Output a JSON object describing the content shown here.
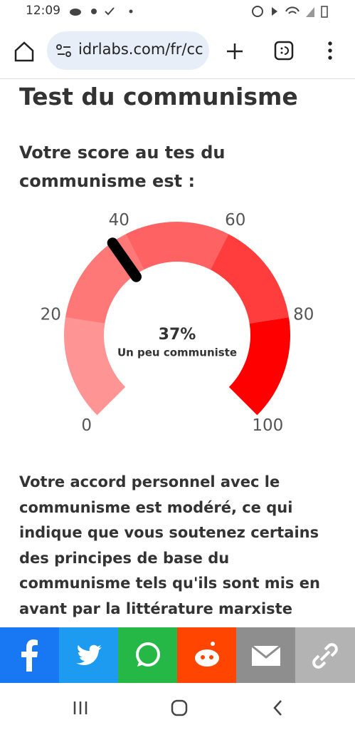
{
  "status_bar": {
    "time": "12:09"
  },
  "browser": {
    "url": "idrlabs.com/fr/cc"
  },
  "page": {
    "title": "Test du communisme",
    "subtitle_lines": [
      "Votre score au tes du",
      "communisme est :"
    ],
    "paragraph_lines": [
      "Votre accord personnel avec le",
      "communisme est modéré, ce qui",
      "indique que vous soutenez certains",
      "des principes de base du",
      "communisme tels qu'ils sont mis en",
      "avant par la littérature marxiste"
    ]
  },
  "gauge": {
    "value": 37,
    "value_label": "37%",
    "caption": "Un peu communiste",
    "range": [
      0,
      100
    ],
    "ticks": [
      0,
      20,
      40,
      60,
      80,
      100
    ],
    "segment_colors": [
      "#ff9494",
      "#ff7878",
      "#ff6262",
      "#ff3d3d",
      "#ff0000"
    ],
    "needle_color": "#000000"
  }
}
